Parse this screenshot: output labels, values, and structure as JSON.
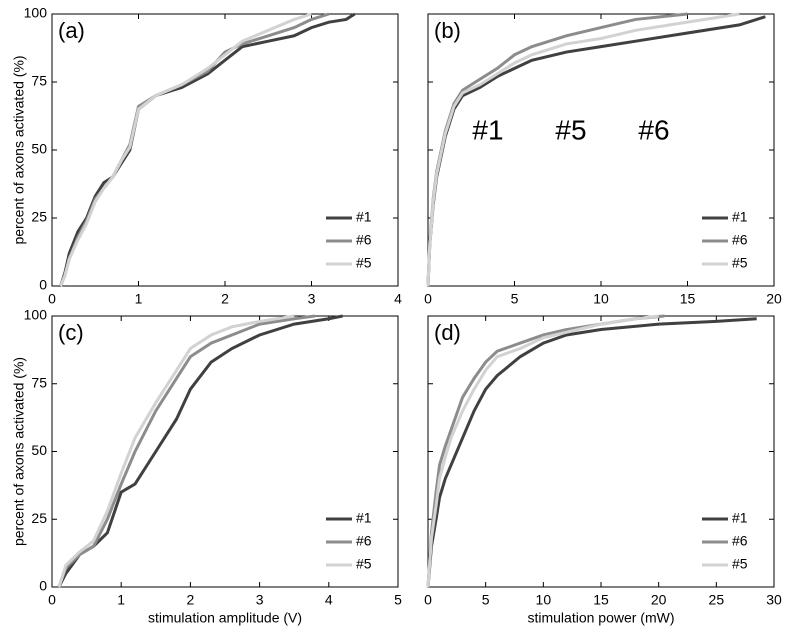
{
  "chart_data": [
    {
      "type": "line",
      "panel_label": "(a)",
      "ylabel": "percent of axons activated  (%)",
      "xlim": [
        0,
        4
      ],
      "xticks": [
        0,
        1,
        2,
        3,
        4
      ],
      "ylim": [
        0,
        100
      ],
      "yticks": [
        0,
        25,
        50,
        75,
        100
      ],
      "legend": "lower right",
      "series": [
        {
          "name": "#1",
          "color": "#404040",
          "x": [
            0.1,
            0.15,
            0.2,
            0.3,
            0.4,
            0.5,
            0.6,
            0.7,
            0.8,
            0.9,
            1.0,
            1.2,
            1.5,
            1.8,
            2.0,
            2.2,
            2.5,
            2.8,
            3.0,
            3.2,
            3.4,
            3.5
          ],
          "values": [
            0,
            5,
            12,
            20,
            25,
            33,
            38,
            40,
            45,
            50,
            65,
            70,
            73,
            78,
            83,
            88,
            90,
            92,
            95,
            97,
            98,
            100
          ]
        },
        {
          "name": "#6",
          "color": "#8c8c8c",
          "x": [
            0.1,
            0.15,
            0.2,
            0.3,
            0.4,
            0.5,
            0.6,
            0.7,
            0.8,
            0.9,
            1.0,
            1.2,
            1.5,
            1.8,
            2.0,
            2.2,
            2.5,
            2.8,
            3.0,
            3.2
          ],
          "values": [
            0,
            4,
            10,
            18,
            24,
            32,
            36,
            40,
            46,
            52,
            66,
            70,
            74,
            79,
            86,
            89,
            92,
            95,
            98,
            100
          ]
        },
        {
          "name": "#5",
          "color": "#d2d2d2",
          "x": [
            0.1,
            0.15,
            0.2,
            0.3,
            0.4,
            0.5,
            0.6,
            0.7,
            0.8,
            0.9,
            1.0,
            1.2,
            1.5,
            1.8,
            2.0,
            2.2,
            2.5,
            2.8,
            3.0
          ],
          "values": [
            0,
            4,
            10,
            17,
            23,
            31,
            36,
            40,
            46,
            51,
            65,
            70,
            74,
            80,
            85,
            90,
            94,
            98,
            100
          ]
        }
      ]
    },
    {
      "type": "line",
      "panel_label": "(b)",
      "xlim": [
        0,
        20
      ],
      "xticks": [
        0,
        5,
        10,
        15,
        20
      ],
      "ylim": [
        0,
        100
      ],
      "yticks": [
        0,
        25,
        50,
        75,
        100
      ],
      "legend": "lower right",
      "inset_labels": [
        "#1",
        "#5",
        "#6"
      ],
      "series": [
        {
          "name": "#1",
          "color": "#404040",
          "x": [
            0,
            0.1,
            0.3,
            0.5,
            1,
            1.5,
            2,
            3,
            4,
            5,
            6,
            8,
            10,
            12,
            15,
            18,
            19.5
          ],
          "values": [
            0,
            15,
            30,
            40,
            55,
            65,
            70,
            73,
            77,
            80,
            83,
            86,
            88,
            90,
            93,
            96,
            99
          ]
        },
        {
          "name": "#6",
          "color": "#8c8c8c",
          "x": [
            0,
            0.1,
            0.3,
            0.5,
            1,
            1.5,
            2,
            3,
            4,
            5,
            6,
            8,
            10,
            12,
            15
          ],
          "values": [
            0,
            16,
            32,
            42,
            57,
            67,
            72,
            76,
            80,
            85,
            88,
            92,
            95,
            98,
            100
          ]
        },
        {
          "name": "#5",
          "color": "#d2d2d2",
          "x": [
            0,
            0.1,
            0.3,
            0.5,
            1,
            1.5,
            2,
            3,
            4,
            5,
            6,
            8,
            10,
            12,
            15,
            18
          ],
          "values": [
            0,
            15,
            31,
            41,
            56,
            66,
            71,
            74,
            78,
            82,
            85,
            89,
            91,
            94,
            97,
            100
          ]
        }
      ]
    },
    {
      "type": "line",
      "panel_label": "(c)",
      "ylabel": "percent of axons activated  (%)",
      "xlabel": "stimulation amplitude (V)",
      "xlim": [
        0,
        5
      ],
      "xticks": [
        0,
        1,
        2,
        3,
        4,
        5
      ],
      "ylim": [
        0,
        100
      ],
      "yticks": [
        0,
        25,
        50,
        75,
        100
      ],
      "legend": "lower right",
      "series": [
        {
          "name": "#1",
          "color": "#404040",
          "x": [
            0.1,
            0.2,
            0.4,
            0.6,
            0.8,
            1.0,
            1.2,
            1.5,
            1.8,
            2.0,
            2.3,
            2.6,
            3.0,
            3.5,
            4.0,
            4.2
          ],
          "values": [
            0,
            5,
            12,
            15,
            20,
            35,
            38,
            50,
            62,
            73,
            83,
            88,
            93,
            97,
            99,
            100
          ]
        },
        {
          "name": "#6",
          "color": "#8c8c8c",
          "x": [
            0.1,
            0.2,
            0.4,
            0.6,
            0.8,
            1.0,
            1.2,
            1.5,
            1.8,
            2.0,
            2.3,
            2.6,
            3.0,
            3.5,
            3.8
          ],
          "values": [
            0,
            7,
            12,
            15,
            25,
            38,
            50,
            65,
            77,
            85,
            90,
            93,
            97,
            99,
            100
          ]
        },
        {
          "name": "#5",
          "color": "#d2d2d2",
          "x": [
            0.1,
            0.2,
            0.4,
            0.6,
            0.8,
            1.0,
            1.2,
            1.5,
            1.8,
            2.0,
            2.3,
            2.6,
            3.0,
            3.5
          ],
          "values": [
            0,
            8,
            13,
            17,
            28,
            42,
            55,
            68,
            80,
            88,
            93,
            96,
            98,
            100
          ]
        }
      ]
    },
    {
      "type": "line",
      "panel_label": "(d)",
      "xlabel": "stimulation power (mW)",
      "xlim": [
        0,
        30
      ],
      "xticks": [
        0,
        5,
        10,
        15,
        20,
        25,
        30
      ],
      "ylim": [
        0,
        100
      ],
      "yticks": [
        0,
        25,
        50,
        75,
        100
      ],
      "legend": "lower right",
      "series": [
        {
          "name": "#1",
          "color": "#404040",
          "x": [
            0,
            0.3,
            0.7,
            1,
            1.5,
            2,
            3,
            4,
            5,
            6,
            8,
            10,
            12,
            15,
            20,
            25,
            28.5
          ],
          "values": [
            0,
            15,
            25,
            33,
            40,
            45,
            55,
            65,
            73,
            78,
            85,
            90,
            93,
            95,
            97,
            98,
            99
          ]
        },
        {
          "name": "#6",
          "color": "#8c8c8c",
          "x": [
            0,
            0.3,
            0.7,
            1,
            1.5,
            2,
            3,
            4,
            5,
            6,
            8,
            10,
            12,
            15,
            18,
            20.5
          ],
          "values": [
            0,
            20,
            35,
            45,
            52,
            58,
            70,
            77,
            83,
            87,
            90,
            93,
            95,
            97,
            99,
            100
          ]
        },
        {
          "name": "#5",
          "color": "#d2d2d2",
          "x": [
            0,
            0.3,
            0.7,
            1,
            1.5,
            2,
            3,
            4,
            5,
            6,
            8,
            10,
            12,
            15,
            18,
            20
          ],
          "values": [
            0,
            18,
            30,
            40,
            48,
            55,
            65,
            73,
            80,
            85,
            88,
            92,
            94,
            97,
            99,
            100
          ]
        }
      ]
    }
  ]
}
